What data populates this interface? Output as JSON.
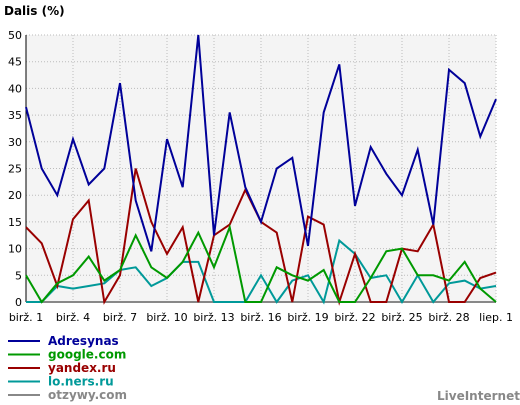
{
  "chart_data": {
    "type": "line",
    "ylabel": "Dalis (%)",
    "xlabel": "",
    "title": "",
    "ylim": [
      0,
      50
    ],
    "yticks": [
      0,
      5,
      10,
      15,
      20,
      25,
      30,
      35,
      40,
      45,
      50
    ],
    "grid": true,
    "legend_position": "bottom-left",
    "watermark": "LiveInternet",
    "x": [
      "birž. 1",
      "birž. 2",
      "birž. 3",
      "birž. 4",
      "birž. 5",
      "birž. 6",
      "birž. 7",
      "birž. 8",
      "birž. 9",
      "birž. 10",
      "birž. 11",
      "birž. 12",
      "birž. 13",
      "birž. 14",
      "birž. 15",
      "birž. 16",
      "birž. 17",
      "birž. 18",
      "birž. 19",
      "birž. 20",
      "birž. 21",
      "birž. 22",
      "birž. 23",
      "birž. 24",
      "birž. 25",
      "birž. 26",
      "birž. 27",
      "birž. 28",
      "birž. 29",
      "birž. 30",
      "liep. 1"
    ],
    "xtick_labels": [
      {
        "index": 0,
        "label": "birž. 1"
      },
      {
        "index": 3,
        "label": "birž. 4"
      },
      {
        "index": 6,
        "label": "birž. 7"
      },
      {
        "index": 9,
        "label": "birž. 10"
      },
      {
        "index": 12,
        "label": "birž. 13"
      },
      {
        "index": 15,
        "label": "birž. 16"
      },
      {
        "index": 18,
        "label": "birž. 19"
      },
      {
        "index": 21,
        "label": "birž. 22"
      },
      {
        "index": 24,
        "label": "birž. 25"
      },
      {
        "index": 27,
        "label": "birž. 28"
      },
      {
        "index": 30,
        "label": "liep. 1"
      }
    ],
    "series": [
      {
        "name": "Adresynas",
        "color": "#000099",
        "values": [
          36.5,
          25,
          20,
          30.5,
          22,
          25,
          41,
          19,
          9.5,
          30.5,
          21.5,
          50,
          12.5,
          35.5,
          21.5,
          15,
          25,
          27,
          10.5,
          35.5,
          44.5,
          18,
          29,
          24,
          20,
          28.5,
          14.5,
          43.5,
          41,
          31,
          38
        ]
      },
      {
        "name": "google.com",
        "color": "#009900",
        "values": [
          5,
          0,
          3.5,
          5,
          8.5,
          4,
          6,
          12.5,
          6.5,
          4.5,
          7.5,
          13,
          6.5,
          14,
          0,
          0,
          6.5,
          5,
          4,
          6,
          0,
          0,
          4.5,
          9.5,
          10,
          5,
          5,
          4,
          7.5,
          2.5,
          0
        ]
      },
      {
        "name": "yandex.ru",
        "color": "#990000",
        "values": [
          14,
          11,
          3,
          15.5,
          19,
          0,
          5,
          25,
          15,
          9,
          14,
          0,
          12.5,
          14.5,
          21,
          15,
          13,
          0,
          16,
          14.5,
          0,
          9,
          0,
          0,
          10,
          9.5,
          14.5,
          0,
          0,
          4.5,
          5.5
        ]
      },
      {
        "name": "lo.ners.ru",
        "color": "#009999",
        "values": [
          0,
          0,
          3,
          2.5,
          3,
          3.5,
          6,
          6.5,
          3,
          4.5,
          7.5,
          7.5,
          0,
          0,
          0,
          5,
          0,
          4,
          5,
          0,
          11.5,
          9,
          4.5,
          5,
          0,
          5,
          0,
          3.5,
          4,
          2.5,
          3
        ]
      },
      {
        "name": "otzywy.com",
        "color": "#888888",
        "values": [
          0,
          0,
          0,
          0,
          0,
          0,
          0,
          0,
          0,
          0,
          0,
          0,
          0,
          0,
          0,
          0,
          0,
          0,
          0,
          0,
          0,
          0,
          0,
          0,
          0,
          0,
          0,
          0,
          0,
          0,
          0
        ]
      }
    ]
  }
}
